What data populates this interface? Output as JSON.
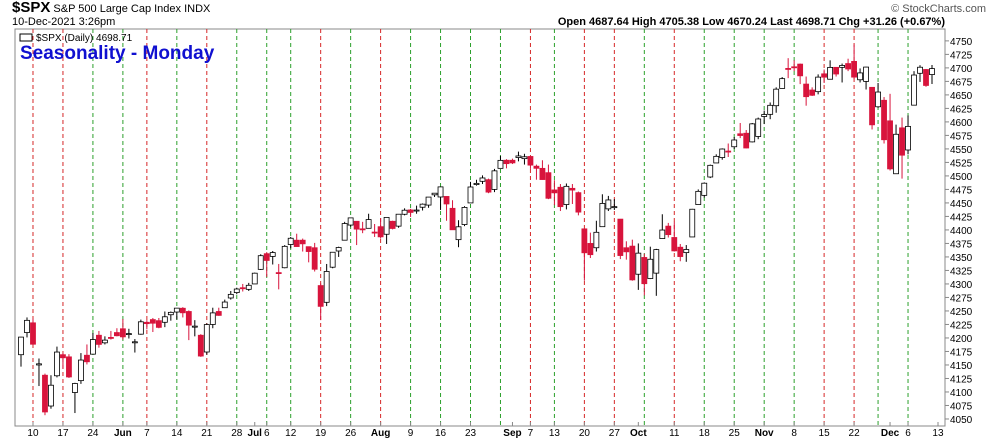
{
  "header": {
    "symbol": "$SPX",
    "name": "S&P 500 Large Cap Index",
    "exchange": "INDX",
    "timestamp": "10-Dec-2021 3:26pm",
    "quote_labels": [
      "Open",
      "High",
      "Low",
      "Last",
      "Chg"
    ],
    "change": "+31.26 (+0.67%)",
    "copyright": "© StockCharts.com"
  },
  "chart_data": {
    "type": "candlestick",
    "title": "Seasonality - Monday",
    "legend": "$SPX (Daily)",
    "up_color": "#000000",
    "down_color": "#d8143c",
    "x": [
      "2021-05-06",
      "2021-05-07",
      "2021-05-10",
      "2021-05-11",
      "2021-05-12",
      "2021-05-13",
      "2021-05-14",
      "2021-05-17",
      "2021-05-18",
      "2021-05-19",
      "2021-05-20",
      "2021-05-21",
      "2021-05-24",
      "2021-05-25",
      "2021-05-26",
      "2021-05-27",
      "2021-05-28",
      "2021-06-01",
      "2021-06-02",
      "2021-06-03",
      "2021-06-04",
      "2021-06-07",
      "2021-06-08",
      "2021-06-09",
      "2021-06-10",
      "2021-06-11",
      "2021-06-14",
      "2021-06-15",
      "2021-06-16",
      "2021-06-17",
      "2021-06-18",
      "2021-06-21",
      "2021-06-22",
      "2021-06-23",
      "2021-06-24",
      "2021-06-25",
      "2021-06-28",
      "2021-06-29",
      "2021-06-30",
      "2021-07-01",
      "2021-07-02",
      "2021-07-06",
      "2021-07-07",
      "2021-07-08",
      "2021-07-09",
      "2021-07-12",
      "2021-07-13",
      "2021-07-14",
      "2021-07-15",
      "2021-07-16",
      "2021-07-19",
      "2021-07-20",
      "2021-07-21",
      "2021-07-22",
      "2021-07-23",
      "2021-07-26",
      "2021-07-27",
      "2021-07-28",
      "2021-07-29",
      "2021-07-30",
      "2021-08-02",
      "2021-08-03",
      "2021-08-04",
      "2021-08-05",
      "2021-08-06",
      "2021-08-09",
      "2021-08-10",
      "2021-08-11",
      "2021-08-12",
      "2021-08-13",
      "2021-08-16",
      "2021-08-17",
      "2021-08-18",
      "2021-08-19",
      "2021-08-20",
      "2021-08-23",
      "2021-08-24",
      "2021-08-25",
      "2021-08-26",
      "2021-08-27",
      "2021-08-30",
      "2021-08-31",
      "2021-09-01",
      "2021-09-02",
      "2021-09-03",
      "2021-09-07",
      "2021-09-08",
      "2021-09-09",
      "2021-09-10",
      "2021-09-13",
      "2021-09-14",
      "2021-09-15",
      "2021-09-16",
      "2021-09-17",
      "2021-09-20",
      "2021-09-21",
      "2021-09-22",
      "2021-09-23",
      "2021-09-24",
      "2021-09-27",
      "2021-09-28",
      "2021-09-29",
      "2021-09-30",
      "2021-10-01",
      "2021-10-04",
      "2021-10-05",
      "2021-10-06",
      "2021-10-07",
      "2021-10-08",
      "2021-10-11",
      "2021-10-12",
      "2021-10-13",
      "2021-10-14",
      "2021-10-15",
      "2021-10-18",
      "2021-10-19",
      "2021-10-20",
      "2021-10-21",
      "2021-10-22",
      "2021-10-25",
      "2021-10-26",
      "2021-10-27",
      "2021-10-28",
      "2021-10-29",
      "2021-11-01",
      "2021-11-02",
      "2021-11-03",
      "2021-11-04",
      "2021-11-05",
      "2021-11-08",
      "2021-11-09",
      "2021-11-10",
      "2021-11-11",
      "2021-11-12",
      "2021-11-15",
      "2021-11-16",
      "2021-11-17",
      "2021-11-18",
      "2021-11-19",
      "2021-11-22",
      "2021-11-23",
      "2021-11-24",
      "2021-11-26",
      "2021-11-29",
      "2021-11-30",
      "2021-12-01",
      "2021-12-02",
      "2021-12-03",
      "2021-12-06",
      "2021-12-07",
      "2021-12-08",
      "2021-12-09",
      "2021-12-10"
    ],
    "open": [
      4169,
      4210,
      4228,
      4150,
      4131,
      4074,
      4130,
      4169,
      4165,
      4099,
      4121,
      4168,
      4170,
      4205,
      4191,
      4201,
      4210,
      4217,
      4207,
      4191,
      4207,
      4229,
      4234,
      4232,
      4229,
      4243,
      4248,
      4255,
      4249,
      4220,
      4205,
      4174,
      4225,
      4249,
      4256,
      4274,
      4284,
      4293,
      4290,
      4300,
      4327,
      4356,
      4351,
      4321,
      4330,
      4373,
      4381,
      4381,
      4369,
      4367,
      4297,
      4266,
      4331,
      4361,
      4381,
      4409,
      4416,
      4402,
      4403,
      4396,
      4406,
      4392,
      4416,
      4407,
      4429,
      4437,
      4436,
      4442,
      4446,
      4465,
      4461,
      4462,
      4440,
      4382,
      4410,
      4450,
      4484,
      4490,
      4493,
      4475,
      4514,
      4529,
      4529,
      4534,
      4532,
      4536,
      4518,
      4514,
      4506,
      4474,
      4479,
      4447,
      4477,
      4469,
      4402,
      4375,
      4367,
      4406,
      4439,
      4443,
      4420,
      4367,
      4370,
      4318,
      4349,
      4310,
      4320,
      4384,
      4407,
      4386,
      4368,
      4358,
      4387,
      4447,
      4464,
      4498,
      4524,
      4534,
      4546,
      4554,
      4578,
      4579,
      4563,
      4573,
      4610,
      4614,
      4630,
      4662,
      4699,
      4702,
      4707,
      4670,
      4659,
      4656,
      4689,
      4679,
      4701,
      4701,
      4708,
      4712,
      4678,
      4675,
      4664,
      4628,
      4640,
      4602,
      4504,
      4589,
      4548,
      4631,
      4690,
      4697,
      4687.64
    ],
    "high": [
      4202,
      4238,
      4236,
      4162,
      4134,
      4131,
      4184,
      4172,
      4170,
      4117,
      4172,
      4188,
      4209,
      4213,
      4203,
      4213,
      4218,
      4235,
      4217,
      4198,
      4234,
      4233,
      4237,
      4237,
      4249,
      4249,
      4255,
      4257,
      4251,
      4233,
      4207,
      4227,
      4256,
      4256,
      4271,
      4287,
      4293,
      4300,
      4302,
      4321,
      4355,
      4359,
      4361,
      4337,
      4372,
      4387,
      4393,
      4384,
      4369,
      4376,
      4301,
      4337,
      4359,
      4369,
      4415,
      4422,
      4416,
      4415,
      4430,
      4411,
      4422,
      4423,
      4417,
      4429,
      4440,
      4439,
      4445,
      4449,
      4461,
      4468,
      4480,
      4462,
      4455,
      4418,
      4444,
      4489,
      4493,
      4501,
      4495,
      4513,
      4537,
      4531,
      4532,
      4545,
      4541,
      4536,
      4521,
      4529,
      4521,
      4492,
      4485,
      4486,
      4485,
      4471,
      4402,
      4395,
      4417,
      4466,
      4463,
      4457,
      4420,
      4379,
      4382,
      4375,
      4356,
      4369,
      4365,
      4429,
      4413,
      4415,
      4374,
      4372,
      4439,
      4475,
      4488,
      4521,
      4540,
      4551,
      4560,
      4572,
      4598,
      4585,
      4598,
      4608,
      4621,
      4636,
      4664,
      4683,
      4718,
      4714,
      4708,
      4684,
      4664,
      4688,
      4697,
      4714,
      4701,
      4708,
      4717,
      4743,
      4699,
      4702,
      4664,
      4672,
      4646,
      4652,
      4595,
      4608,
      4612,
      4694,
      4705,
      4698,
      4705.38
    ],
    "low": [
      4147,
      4201,
      4188,
      4111,
      4057,
      4069,
      4127,
      4143,
      4126,
      4061,
      4115,
      4151,
      4170,
      4182,
      4188,
      4197,
      4203,
      4197,
      4199,
      4173,
      4206,
      4216,
      4211,
      4218,
      4220,
      4232,
      4234,
      4238,
      4196,
      4203,
      4165,
      4169,
      4218,
      4241,
      4256,
      4271,
      4281,
      4286,
      4287,
      4300,
      4326,
      4313,
      4336,
      4290,
      4329,
      4366,
      4369,
      4360,
      4340,
      4323,
      4233,
      4259,
      4329,
      4350,
      4381,
      4406,
      4372,
      4394,
      4403,
      4387,
      4384,
      4374,
      4401,
      4404,
      4427,
      4424,
      4430,
      4436,
      4441,
      4461,
      4437,
      4417,
      4400,
      4368,
      4407,
      4450,
      4482,
      4485,
      4468,
      4470,
      4514,
      4514,
      4522,
      4527,
      4521,
      4513,
      4493,
      4493,
      4457,
      4446,
      4435,
      4438,
      4448,
      4427,
      4306,
      4348,
      4360,
      4406,
      4435,
      4437,
      4346,
      4345,
      4306,
      4289,
      4279,
      4309,
      4278,
      4384,
      4386,
      4360,
      4342,
      4341,
      4387,
      4447,
      4460,
      4496,
      4524,
      4530,
      4535,
      4550,
      4570,
      4551,
      4562,
      4568,
      4596,
      4605,
      4617,
      4662,
      4681,
      4694,
      4670,
      4630,
      4648,
      4651,
      4672,
      4679,
      4684,
      4673,
      4694,
      4680,
      4673,
      4660,
      4586,
      4626,
      4560,
      4510,
      4504,
      4495,
      4540,
      4631,
      4674,
      4665,
      4670.24
    ],
    "close": [
      4201.6,
      4232.6,
      4188.4,
      4152.1,
      4063,
      4112.5,
      4173.9,
      4163.3,
      4127.8,
      4115.7,
      4159.1,
      4155.9,
      4197.1,
      4188.1,
      4196,
      4200.9,
      4204.1,
      4202,
      4208.1,
      4192.9,
      4229.9,
      4226.5,
      4227.3,
      4219.6,
      4239.2,
      4247.4,
      4255.2,
      4246.6,
      4223.7,
      4221.9,
      4166.5,
      4224.8,
      4246.4,
      4241.8,
      4266.5,
      4280.7,
      4290.6,
      4291.8,
      4297.5,
      4319.9,
      4352.3,
      4343.5,
      4358.1,
      4320.8,
      4369.6,
      4384.6,
      4369.2,
      4374.3,
      4360,
      4327.2,
      4258.5,
      4323.1,
      4358.7,
      4367.5,
      4411.8,
      4422.3,
      4401.5,
      4400.6,
      4419.2,
      4395.3,
      4387.2,
      4423.2,
      4402.7,
      4429.1,
      4436.5,
      4432.4,
      4436.8,
      4447.7,
      4460.8,
      4468,
      4479.7,
      4448.1,
      4400.3,
      4405.8,
      4441.7,
      4479.5,
      4486.2,
      4496.2,
      4470,
      4509.4,
      4528.8,
      4522.7,
      4524.1,
      4537,
      4535.4,
      4520,
      4514.1,
      4493.3,
      4458.6,
      4468.7,
      4443.1,
      4480.7,
      4473.8,
      4433,
      4357.7,
      4354.2,
      4395.6,
      4449,
      4455.5,
      4443.1,
      4352.6,
      4359.5,
      4307.5,
      4357,
      4300.5,
      4345.7,
      4363.6,
      4399.8,
      4391.3,
      4361.2,
      4350.7,
      4363.8,
      4438.3,
      4471.4,
      4486.5,
      4519.6,
      4536.2,
      4549.8,
      4544.9,
      4566.5,
      4574.8,
      4551.7,
      4596.4,
      4605.4,
      4613.7,
      4630.7,
      4660.6,
      4680.1,
      4697.5,
      4701.7,
      4685.3,
      4646.7,
      4649.3,
      4682.9,
      4682.8,
      4700.9,
      4688.7,
      4704.5,
      4698,
      4682.9,
      4690.7,
      4701.5,
      4594.6,
      4655.3,
      4567,
      4513,
      4577.1,
      4538.4,
      4591.7,
      4686.8,
      4701.2,
      4667.5,
      4698.71
    ],
    "monday_lines": {
      "dates": [
        "2021-05-10",
        "2021-05-17",
        "2021-05-24",
        "2021-06-01",
        "2021-06-07",
        "2021-06-14",
        "2021-06-21",
        "2021-06-28",
        "2021-07-06",
        "2021-07-12",
        "2021-07-19",
        "2021-07-26",
        "2021-08-02",
        "2021-08-09",
        "2021-08-16",
        "2021-08-23",
        "2021-08-30",
        "2021-09-07",
        "2021-09-13",
        "2021-09-20",
        "2021-09-27",
        "2021-10-04",
        "2021-10-11",
        "2021-10-18",
        "2021-10-25",
        "2021-11-01",
        "2021-11-08",
        "2021-11-15",
        "2021-11-22",
        "2021-11-29",
        "2021-12-06"
      ],
      "colors": [
        "#d62728",
        "#d62728",
        "#2ca02c",
        "#2ca02c",
        "#d62728",
        "#2ca02c",
        "#d62728",
        "#2ca02c",
        "#2ca02c",
        "#2ca02c",
        "#d62728",
        "#2ca02c",
        "#d62728",
        "#2ca02c",
        "#2ca02c",
        "#2ca02c",
        "#2ca02c",
        "#d62728",
        "#2ca02c",
        "#d62728",
        "#d62728",
        "#2ca02c",
        "#d62728",
        "#2ca02c",
        "#2ca02c",
        "#2ca02c",
        "#2ca02c",
        "#d62728",
        "#d62728",
        "#2ca02c",
        "#2ca02c"
      ]
    },
    "ylim": [
      4037,
      4772
    ],
    "yticks": [
      4050,
      4075,
      4100,
      4125,
      4150,
      4175,
      4200,
      4225,
      4250,
      4275,
      4300,
      4325,
      4350,
      4375,
      4400,
      4425,
      4450,
      4475,
      4500,
      4525,
      4550,
      4575,
      4600,
      4625,
      4650,
      4675,
      4700,
      4725,
      4750
    ],
    "xticks": [
      {
        "value": "2021-05-10",
        "label": "10"
      },
      {
        "value": "2021-05-17",
        "label": "17"
      },
      {
        "value": "2021-05-24",
        "label": "24"
      },
      {
        "value": "2021-06-01",
        "label": "Jun"
      },
      {
        "value": "2021-06-07",
        "label": "7"
      },
      {
        "value": "2021-06-14",
        "label": "14"
      },
      {
        "value": "2021-06-21",
        "label": "21"
      },
      {
        "value": "2021-06-28",
        "label": "28"
      },
      {
        "value": "2021-07-01",
        "label": "Jul"
      },
      {
        "value": "2021-07-06",
        "label": "6"
      },
      {
        "value": "2021-07-12",
        "label": "12"
      },
      {
        "value": "2021-07-19",
        "label": "19"
      },
      {
        "value": "2021-07-26",
        "label": "26"
      },
      {
        "value": "2021-08-02",
        "label": "Aug"
      },
      {
        "value": "2021-08-09",
        "label": "9"
      },
      {
        "value": "2021-08-16",
        "label": "16"
      },
      {
        "value": "2021-08-23",
        "label": "23"
      },
      {
        "value": "2021-09-01",
        "label": "Sep"
      },
      {
        "value": "2021-09-07",
        "label": "7"
      },
      {
        "value": "2021-09-13",
        "label": "13"
      },
      {
        "value": "2021-09-20",
        "label": "20"
      },
      {
        "value": "2021-09-27",
        "label": "27"
      },
      {
        "value": "2021-10-01",
        "label": "Oct"
      },
      {
        "value": "2021-10-11",
        "label": "11"
      },
      {
        "value": "2021-10-18",
        "label": "18"
      },
      {
        "value": "2021-10-25",
        "label": "25"
      },
      {
        "value": "2021-11-01",
        "label": "Nov"
      },
      {
        "value": "2021-11-08",
        "label": "8"
      },
      {
        "value": "2021-11-15",
        "label": "15"
      },
      {
        "value": "2021-11-22",
        "label": "22"
      },
      {
        "value": "2021-12-01",
        "label": "Dec"
      },
      {
        "value": "2021-12-06",
        "label": "6"
      },
      {
        "value": "2021-12-13",
        "label": "13"
      }
    ]
  }
}
